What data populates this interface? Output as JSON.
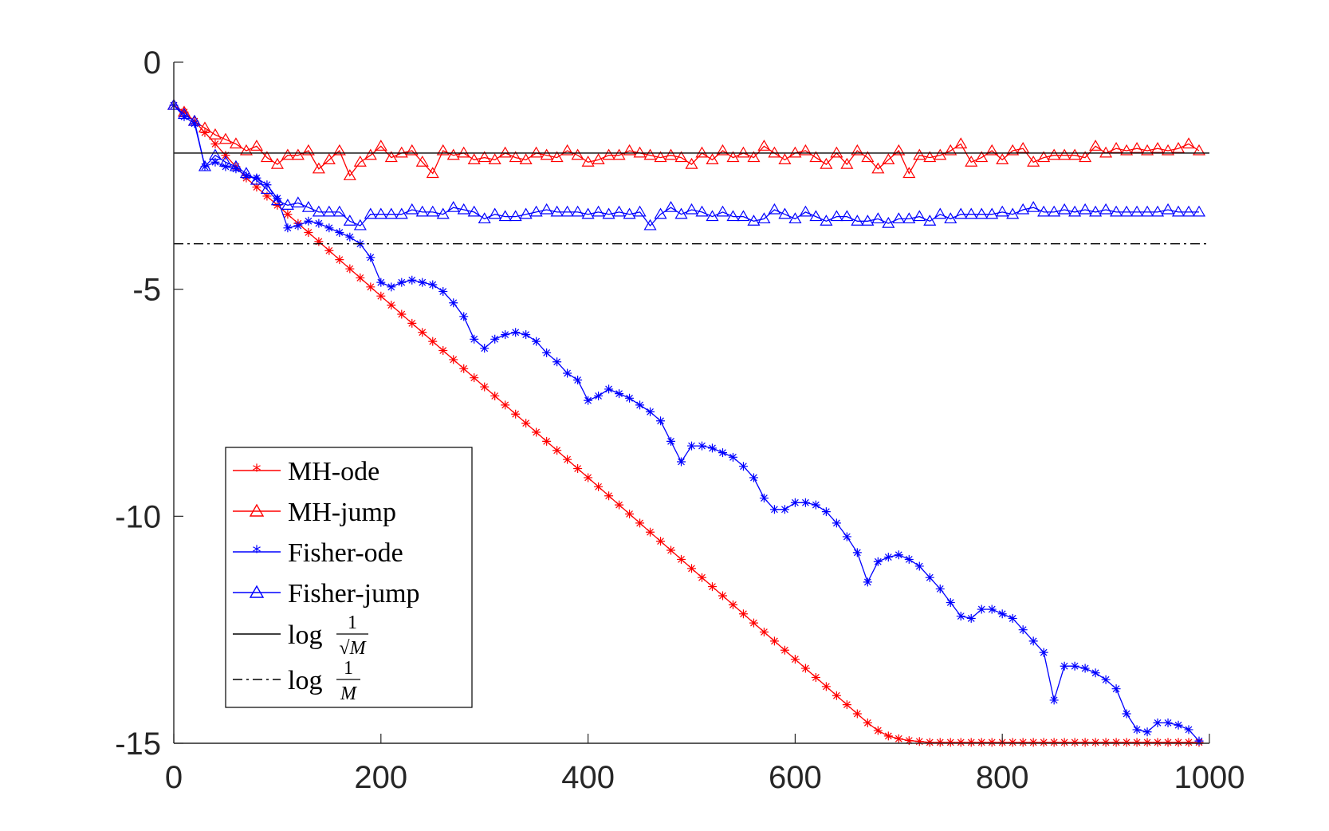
{
  "chart_data": {
    "type": "line",
    "title": "",
    "xlabel": "",
    "ylabel": "",
    "xlim": [
      0,
      1000
    ],
    "ylim": [
      -15,
      0
    ],
    "xticks": [
      0,
      200,
      400,
      600,
      800,
      1000
    ],
    "xtick_labels": [
      "0",
      "200",
      "400",
      "600",
      "800",
      "1000"
    ],
    "yticks": [
      0,
      -5,
      -10,
      -15
    ],
    "ytick_labels": [
      "0",
      "-5",
      "-10",
      "-15"
    ],
    "grid": false,
    "legend_position": "bottom-left",
    "series": [
      {
        "name": "MH-ode",
        "color": "#ff0000",
        "marker": "star",
        "x": [
          0,
          10,
          20,
          30,
          40,
          50,
          60,
          70,
          80,
          90,
          100,
          110,
          120,
          130,
          140,
          150,
          160,
          170,
          180,
          190,
          200,
          210,
          220,
          230,
          240,
          250,
          260,
          270,
          280,
          290,
          300,
          310,
          320,
          330,
          340,
          350,
          360,
          370,
          380,
          390,
          400,
          410,
          420,
          430,
          440,
          450,
          460,
          470,
          480,
          490,
          500,
          510,
          520,
          530,
          540,
          550,
          560,
          570,
          580,
          590,
          600,
          610,
          620,
          630,
          640,
          650,
          660,
          670,
          680,
          690,
          700,
          710,
          720,
          730,
          740,
          750,
          760,
          770,
          780,
          790,
          800,
          810,
          820,
          830,
          840,
          850,
          860,
          870,
          880,
          890,
          900,
          910,
          920,
          930,
          940,
          950,
          960,
          970,
          980,
          990
        ],
        "y": [
          -0.95,
          -1.1,
          -1.3,
          -1.55,
          -1.8,
          -2.05,
          -2.3,
          -2.55,
          -2.75,
          -2.95,
          -3.15,
          -3.35,
          -3.55,
          -3.75,
          -3.95,
          -4.15,
          -4.35,
          -4.55,
          -4.75,
          -4.95,
          -5.15,
          -5.35,
          -5.55,
          -5.75,
          -5.95,
          -6.15,
          -6.35,
          -6.55,
          -6.75,
          -6.95,
          -7.15,
          -7.35,
          -7.55,
          -7.75,
          -7.95,
          -8.15,
          -8.35,
          -8.55,
          -8.75,
          -8.95,
          -9.15,
          -9.35,
          -9.55,
          -9.75,
          -9.95,
          -10.15,
          -10.35,
          -10.55,
          -10.75,
          -10.95,
          -11.15,
          -11.35,
          -11.55,
          -11.75,
          -11.95,
          -12.15,
          -12.35,
          -12.55,
          -12.75,
          -12.95,
          -13.15,
          -13.35,
          -13.55,
          -13.75,
          -13.95,
          -14.15,
          -14.35,
          -14.55,
          -14.72,
          -14.84,
          -14.9,
          -14.94,
          -14.96,
          -14.98,
          -14.98,
          -14.98,
          -14.98,
          -14.98,
          -14.98,
          -14.98,
          -14.98,
          -14.98,
          -14.98,
          -14.98,
          -14.98,
          -14.98,
          -14.98,
          -14.98,
          -14.98,
          -14.98,
          -14.98,
          -14.98,
          -14.98,
          -14.98,
          -14.98,
          -14.98,
          -14.98,
          -14.98,
          -14.98,
          -14.98
        ]
      },
      {
        "name": "MH-jump",
        "color": "#ff0000",
        "marker": "triangle",
        "x": [
          0,
          10,
          20,
          30,
          40,
          50,
          60,
          70,
          80,
          90,
          100,
          110,
          120,
          130,
          140,
          150,
          160,
          170,
          180,
          190,
          200,
          210,
          220,
          230,
          240,
          250,
          260,
          270,
          280,
          290,
          300,
          310,
          320,
          330,
          340,
          350,
          360,
          370,
          380,
          390,
          400,
          410,
          420,
          430,
          440,
          450,
          460,
          470,
          480,
          490,
          500,
          510,
          520,
          530,
          540,
          550,
          560,
          570,
          580,
          590,
          600,
          610,
          620,
          630,
          640,
          650,
          660,
          670,
          680,
          690,
          700,
          710,
          720,
          730,
          740,
          750,
          760,
          770,
          780,
          790,
          800,
          810,
          820,
          830,
          840,
          850,
          860,
          870,
          880,
          890,
          900,
          910,
          920,
          930,
          940,
          950,
          960,
          970,
          980,
          990
        ],
        "y": [
          -0.95,
          -1.1,
          -1.3,
          -1.45,
          -1.6,
          -1.7,
          -1.8,
          -1.95,
          -1.85,
          -2.1,
          -2.25,
          -2.05,
          -2.05,
          -1.95,
          -2.35,
          -2.15,
          -1.95,
          -2.5,
          -2.2,
          -2.05,
          -1.85,
          -2.1,
          -2.0,
          -1.95,
          -2.2,
          -2.45,
          -1.95,
          -2.05,
          -2.0,
          -2.15,
          -2.1,
          -2.15,
          -2.0,
          -2.1,
          -2.15,
          -2.0,
          -2.05,
          -2.1,
          -1.95,
          -2.05,
          -2.2,
          -2.15,
          -2.05,
          -2.05,
          -1.95,
          -2.0,
          -2.05,
          -2.1,
          -2.05,
          -2.1,
          -2.25,
          -2.0,
          -2.15,
          -1.95,
          -2.1,
          -2.0,
          -2.1,
          -1.85,
          -2.0,
          -2.15,
          -2.0,
          -1.95,
          -2.1,
          -2.25,
          -2.0,
          -2.25,
          -1.95,
          -2.1,
          -2.35,
          -2.15,
          -1.95,
          -2.45,
          -2.05,
          -2.1,
          -2.05,
          -1.95,
          -1.8,
          -2.2,
          -2.1,
          -1.95,
          -2.15,
          -1.95,
          -1.9,
          -2.2,
          -2.1,
          -2.05,
          -2.05,
          -2.05,
          -2.1,
          -1.85,
          -2.0,
          -1.9,
          -1.95,
          -1.9,
          -1.95,
          -1.9,
          -1.95,
          -1.9,
          -1.8,
          -1.95
        ]
      },
      {
        "name": "Fisher-ode",
        "color": "#0000ff",
        "marker": "star",
        "x": [
          0,
          10,
          20,
          30,
          40,
          50,
          60,
          70,
          80,
          90,
          100,
          110,
          120,
          130,
          140,
          150,
          160,
          170,
          180,
          190,
          200,
          210,
          220,
          230,
          240,
          250,
          260,
          270,
          280,
          290,
          300,
          310,
          320,
          330,
          340,
          350,
          360,
          370,
          380,
          390,
          400,
          410,
          420,
          430,
          440,
          450,
          460,
          470,
          480,
          490,
          500,
          510,
          520,
          530,
          540,
          550,
          560,
          570,
          580,
          590,
          600,
          610,
          620,
          630,
          640,
          650,
          660,
          670,
          680,
          690,
          700,
          710,
          720,
          730,
          740,
          750,
          760,
          770,
          780,
          790,
          800,
          810,
          820,
          830,
          840,
          850,
          860,
          870,
          880,
          890,
          900,
          910,
          920,
          930,
          940,
          950,
          960,
          970,
          980,
          990
        ],
        "y": [
          -0.95,
          -1.2,
          -1.35,
          -2.3,
          -2.2,
          -2.3,
          -2.35,
          -2.5,
          -2.55,
          -2.7,
          -3.0,
          -3.65,
          -3.6,
          -3.5,
          -3.55,
          -3.65,
          -3.75,
          -3.85,
          -4.0,
          -4.3,
          -4.85,
          -4.95,
          -4.85,
          -4.8,
          -4.85,
          -4.9,
          -5.05,
          -5.3,
          -5.6,
          -6.1,
          -6.3,
          -6.1,
          -6.0,
          -5.95,
          -6.0,
          -6.15,
          -6.4,
          -6.6,
          -6.85,
          -7.0,
          -7.45,
          -7.35,
          -7.2,
          -7.3,
          -7.4,
          -7.55,
          -7.7,
          -7.9,
          -8.35,
          -8.8,
          -8.45,
          -8.45,
          -8.5,
          -8.6,
          -8.7,
          -8.9,
          -9.15,
          -9.6,
          -9.85,
          -9.85,
          -9.7,
          -9.7,
          -9.75,
          -9.9,
          -10.15,
          -10.45,
          -10.8,
          -11.45,
          -11.0,
          -10.9,
          -10.85,
          -10.95,
          -11.1,
          -11.35,
          -11.6,
          -11.9,
          -12.2,
          -12.25,
          -12.05,
          -12.05,
          -12.15,
          -12.25,
          -12.5,
          -12.75,
          -13.0,
          -14.05,
          -13.3,
          -13.3,
          -13.35,
          -13.45,
          -13.6,
          -13.8,
          -14.35,
          -14.7,
          -14.75,
          -14.55,
          -14.55,
          -14.6,
          -14.7,
          -14.95
        ]
      },
      {
        "name": "Fisher-jump",
        "color": "#0000ff",
        "marker": "triangle",
        "x": [
          0,
          10,
          20,
          30,
          40,
          50,
          60,
          70,
          80,
          90,
          100,
          110,
          120,
          130,
          140,
          150,
          160,
          170,
          180,
          190,
          200,
          210,
          220,
          230,
          240,
          250,
          260,
          270,
          280,
          290,
          300,
          310,
          320,
          330,
          340,
          350,
          360,
          370,
          380,
          390,
          400,
          410,
          420,
          430,
          440,
          450,
          460,
          470,
          480,
          490,
          500,
          510,
          520,
          530,
          540,
          550,
          560,
          570,
          580,
          590,
          600,
          610,
          620,
          630,
          640,
          650,
          660,
          670,
          680,
          690,
          700,
          710,
          720,
          730,
          740,
          750,
          760,
          770,
          780,
          790,
          800,
          810,
          820,
          830,
          840,
          850,
          860,
          870,
          880,
          890,
          900,
          910,
          920,
          930,
          940,
          950,
          960,
          970,
          980,
          990
        ],
        "y": [
          -0.95,
          -1.15,
          -1.3,
          -2.3,
          -2.05,
          -2.2,
          -2.3,
          -2.45,
          -2.6,
          -2.8,
          -3.05,
          -3.15,
          -3.1,
          -3.2,
          -3.3,
          -3.3,
          -3.3,
          -3.5,
          -3.6,
          -3.35,
          -3.35,
          -3.35,
          -3.35,
          -3.25,
          -3.3,
          -3.3,
          -3.35,
          -3.2,
          -3.25,
          -3.3,
          -3.45,
          -3.35,
          -3.4,
          -3.4,
          -3.35,
          -3.3,
          -3.25,
          -3.3,
          -3.3,
          -3.3,
          -3.35,
          -3.3,
          -3.35,
          -3.3,
          -3.35,
          -3.3,
          -3.6,
          -3.35,
          -3.2,
          -3.35,
          -3.25,
          -3.3,
          -3.4,
          -3.3,
          -3.4,
          -3.4,
          -3.5,
          -3.45,
          -3.25,
          -3.35,
          -3.45,
          -3.3,
          -3.4,
          -3.5,
          -3.4,
          -3.4,
          -3.5,
          -3.5,
          -3.45,
          -3.55,
          -3.45,
          -3.45,
          -3.4,
          -3.5,
          -3.35,
          -3.45,
          -3.35,
          -3.35,
          -3.35,
          -3.35,
          -3.3,
          -3.35,
          -3.25,
          -3.2,
          -3.3,
          -3.3,
          -3.25,
          -3.3,
          -3.25,
          -3.3,
          -3.25,
          -3.3,
          -3.3,
          -3.3,
          -3.3,
          -3.3,
          -3.25,
          -3.3,
          -3.3,
          -3.3
        ]
      },
      {
        "name": "log 1/√M",
        "color": "#000000",
        "style": "solid",
        "x": [
          0,
          1000
        ],
        "y": [
          -2.0,
          -2.0
        ]
      },
      {
        "name": "log 1/M",
        "color": "#000000",
        "style": "dash-dot",
        "x": [
          0,
          1000
        ],
        "y": [
          -4.0,
          -4.0
        ]
      }
    ],
    "legend": {
      "entries": [
        {
          "label": "MH-ode",
          "series": 0
        },
        {
          "label": "MH-jump",
          "series": 1
        },
        {
          "label": "Fisher-ode",
          "series": 2
        },
        {
          "label": "Fisher-jump",
          "series": 3
        },
        {
          "label_prefix": "log",
          "frac_num": "1",
          "frac_den": "√M",
          "series": 4
        },
        {
          "label_prefix": "log",
          "frac_num": "1",
          "frac_den": "M",
          "series": 5
        }
      ]
    }
  }
}
